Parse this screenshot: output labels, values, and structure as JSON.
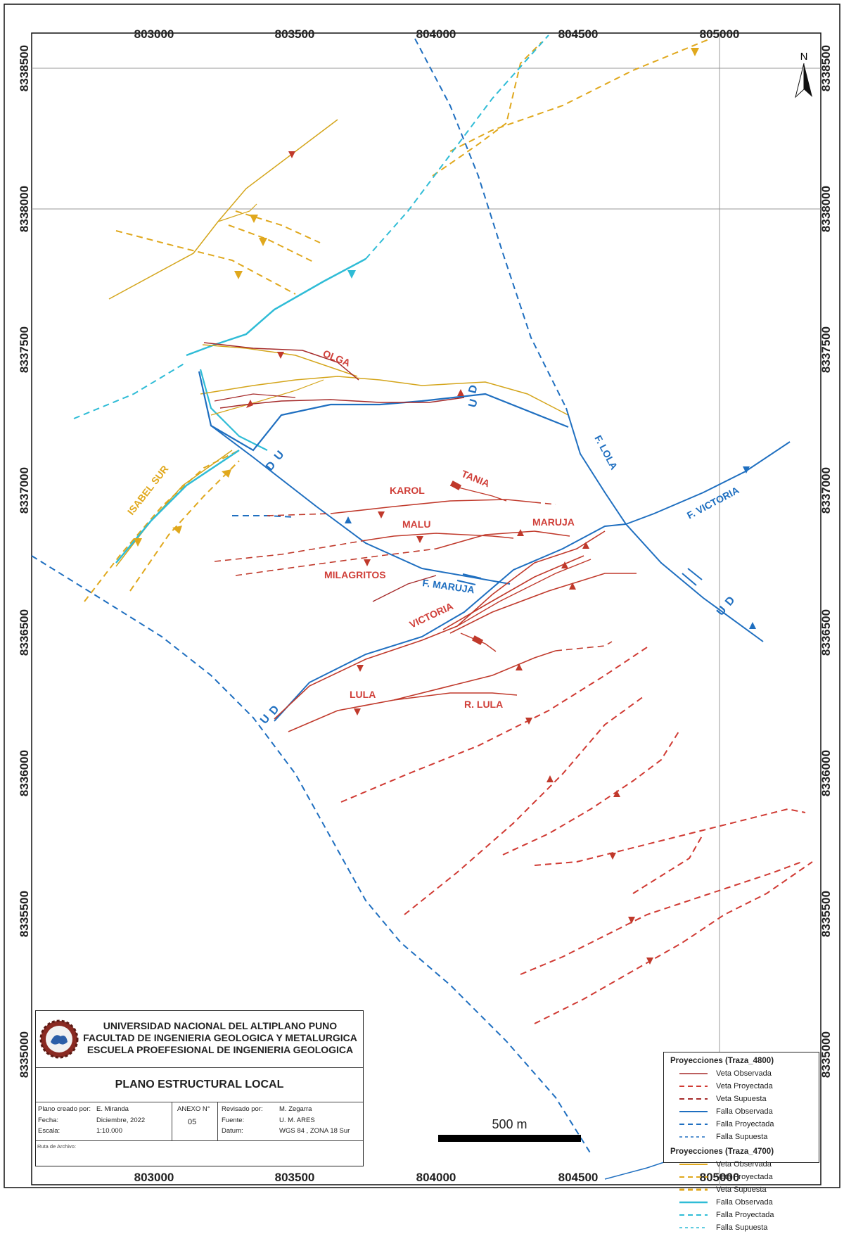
{
  "axis": {
    "x_ticks": [
      "803000",
      "803500",
      "804000",
      "804500",
      "805000"
    ],
    "y_ticks": [
      "8338500",
      "8338000",
      "8337500",
      "8337000",
      "8336500",
      "8336000",
      "8335500",
      "8335000"
    ]
  },
  "labels": {
    "olga": "OLGA",
    "karol": "KAROL",
    "tania": "TANIA",
    "malu": "MALU",
    "maruja": "MARUJA",
    "milagritos": "MILAGRITOS",
    "victoria": "VICTORIA",
    "lula": "LULA",
    "r_lula": "R. LULA",
    "isabel_sur": "ISABEL SUR",
    "f_lola": "F. LOLA",
    "f_victoria": "F. VICTORIA",
    "f_maruja": "F. MARUJA",
    "u": "U",
    "d": "D"
  },
  "north": "N",
  "scale": "500 m",
  "legend": {
    "group1_title": "Proyecciones (Traza_4800)",
    "group1": [
      "Veta Observada",
      "Veta Proyectada",
      "Veta Supuesta",
      "Falla Observada",
      "Falla Proyectada",
      "Falla Supuesta"
    ],
    "group2_title": "Proyecciones (Traza_4700)",
    "group2": [
      "Veta Observada",
      "Veta Proyectada",
      "Veta Supuesta",
      "Falla Observada",
      "Falla Proyectada",
      "Falla Supuesta"
    ]
  },
  "titleblock": {
    "inst1": "UNIVERSIDAD NACIONAL DEL ALTIPLANO PUNO",
    "inst2": "FACULTAD DE INGENIERIA GEOLOGICA Y METALURGICA",
    "inst3": "ESCUELA PROEFESIONAL DE INGENIERIA GEOLOGICA",
    "plan": "PLANO ESTRUCTURAL LOCAL",
    "creado_label": "Plano creado por:",
    "creado": "E. Miranda",
    "fecha_label": "Fecha:",
    "fecha": "Diciembre, 2022",
    "escala_label": "Escala:",
    "escala": "1:10.000",
    "anexo_label": "ANEXO N°",
    "anexo": "05",
    "revisado_label": "Revisado por:",
    "revisado": "M. Zegarra",
    "fuente_label": "Fuente:",
    "fuente": "U. M. ARES",
    "datum_label": "Datum:",
    "datum": "WGS 84 , ZONA 18 Sur",
    "ruta": "Ruta de Archivo:"
  },
  "colors": {
    "veta_4800": "#c0392b",
    "veta_4800_dash": "#d03a33",
    "falla_blue": "#1f6fc0",
    "veta_4700": "#d4a51b",
    "falla_cyan": "#2fbcd6"
  }
}
